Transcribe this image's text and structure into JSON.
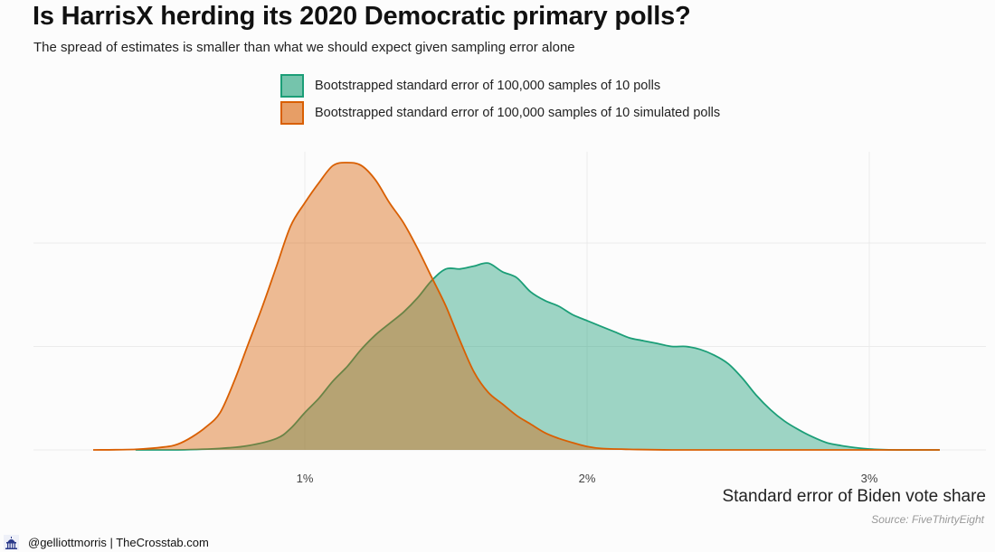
{
  "header": {
    "title": "Is HarrisX herding its 2020 Democratic primary polls?",
    "subtitle": "The spread of estimates is smaller than what we should expect given sampling error alone"
  },
  "colors": {
    "real": "#1b9e77",
    "simulated": "#d95f02",
    "grid": "#ebebeb",
    "background": "#fcfcfc"
  },
  "footer": {
    "credit": "@gelliottmorris | TheCrosstab.com",
    "icon": "capitol-building-icon"
  },
  "chart_data": {
    "type": "area",
    "xlabel": "Standard error of Biden vote share",
    "ylabel": "",
    "source": "Source: FiveThirtyEight",
    "xlim": [
      0.25,
      3.4
    ],
    "ylim": [
      0,
      1.0
    ],
    "xticks": [
      {
        "value": 1,
        "label": "1%"
      },
      {
        "value": 2,
        "label": "2%"
      },
      {
        "value": 3,
        "label": "3%"
      }
    ],
    "y_gridlines": [
      0,
      0.36,
      0.72
    ],
    "grid": true,
    "legend_position": "top",
    "series": [
      {
        "name": "Bootstrapped standard error of 100,000 samples of 10 polls",
        "color_key": "real",
        "x": [
          0.4,
          0.55,
          0.7,
          0.8,
          0.9,
          0.95,
          1.0,
          1.05,
          1.1,
          1.15,
          1.2,
          1.25,
          1.3,
          1.35,
          1.4,
          1.45,
          1.5,
          1.55,
          1.6,
          1.65,
          1.7,
          1.75,
          1.8,
          1.85,
          1.9,
          1.95,
          2.0,
          2.05,
          2.1,
          2.15,
          2.2,
          2.25,
          2.3,
          2.35,
          2.4,
          2.45,
          2.5,
          2.55,
          2.6,
          2.65,
          2.7,
          2.75,
          2.8,
          2.85,
          2.9,
          2.95,
          3.0,
          3.1,
          3.25
        ],
        "y": [
          0.0,
          0.0,
          0.005,
          0.015,
          0.04,
          0.075,
          0.13,
          0.18,
          0.24,
          0.29,
          0.35,
          0.4,
          0.44,
          0.48,
          0.53,
          0.59,
          0.63,
          0.63,
          0.64,
          0.65,
          0.62,
          0.6,
          0.55,
          0.52,
          0.5,
          0.47,
          0.45,
          0.43,
          0.41,
          0.39,
          0.38,
          0.37,
          0.36,
          0.36,
          0.35,
          0.33,
          0.3,
          0.25,
          0.19,
          0.14,
          0.1,
          0.07,
          0.045,
          0.025,
          0.015,
          0.008,
          0.003,
          0.0,
          0.0
        ]
      },
      {
        "name": "Bootstrapped standard error of 100,000 samples of 10 simulated polls",
        "color_key": "simulated",
        "x": [
          0.25,
          0.4,
          0.5,
          0.55,
          0.6,
          0.65,
          0.7,
          0.75,
          0.8,
          0.85,
          0.9,
          0.95,
          1.0,
          1.05,
          1.1,
          1.15,
          1.2,
          1.25,
          1.3,
          1.35,
          1.4,
          1.45,
          1.5,
          1.55,
          1.6,
          1.65,
          1.7,
          1.75,
          1.8,
          1.85,
          1.9,
          1.95,
          2.0,
          2.05,
          2.15,
          2.3,
          2.6,
          3.25
        ],
        "y": [
          0.0,
          0.002,
          0.01,
          0.02,
          0.045,
          0.08,
          0.13,
          0.24,
          0.37,
          0.5,
          0.64,
          0.78,
          0.86,
          0.93,
          0.99,
          1.0,
          0.99,
          0.94,
          0.86,
          0.79,
          0.7,
          0.6,
          0.5,
          0.38,
          0.27,
          0.2,
          0.16,
          0.12,
          0.09,
          0.06,
          0.04,
          0.025,
          0.012,
          0.005,
          0.002,
          0.0,
          0.0,
          0.0
        ]
      }
    ]
  }
}
